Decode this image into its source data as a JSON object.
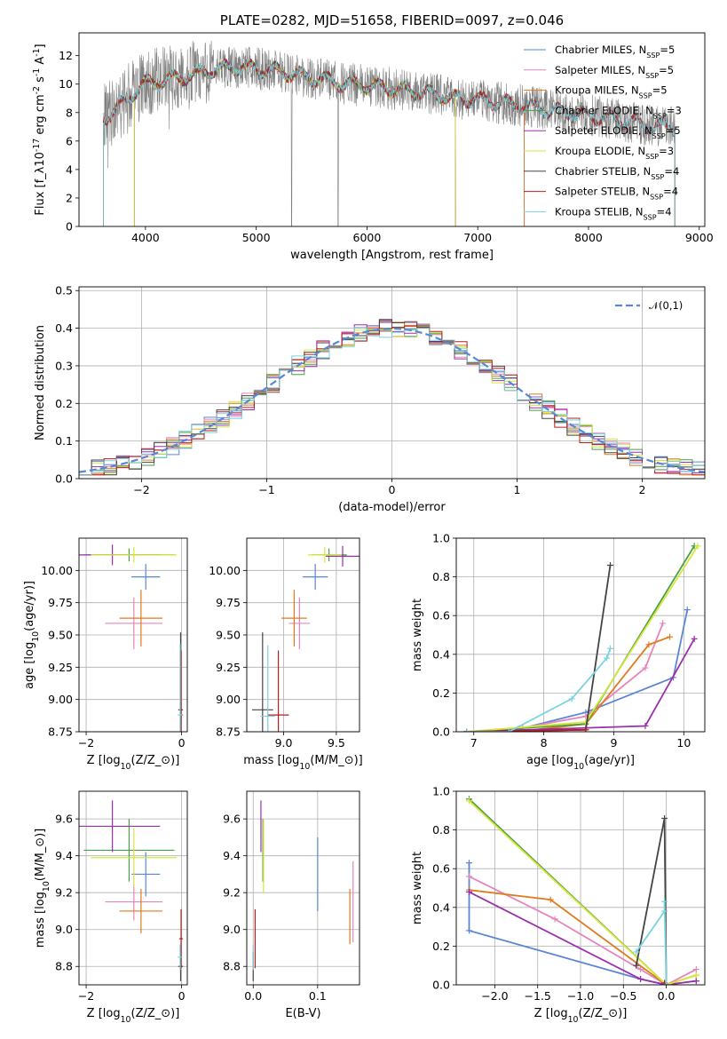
{
  "colors": {
    "Chabrier MILES": "#5b86d6",
    "Salpeter MILES": "#e684bc",
    "Kroupa MILES": "#e07a1f",
    "Chabrier ELODIE": "#4a9e4a",
    "Salpeter ELODIE": "#9b2fae",
    "Kroupa ELODIE": "#d6e63a",
    "Chabrier STELIB": "#444444",
    "Salpeter STELIB": "#b51f1f",
    "Kroupa STELIB": "#7ad3de",
    "obs": "#808080",
    "norm": "#5b86d6"
  },
  "chart_data": [
    {
      "id": "spectrum",
      "type": "line",
      "title": "PLATE=0282, MJD=51658, FIBERID=0097, z=0.046",
      "xlabel": "wavelength [Angstrom, rest frame]",
      "ylabel": "Flux [f$_\\lambda$10$^{-17}$ erg cm$^{-2}$ s$^{-1}$ A$^{-1}$]",
      "xlim": [
        3400,
        9050
      ],
      "ylim": [
        0,
        13.6
      ],
      "xticks": [
        4000,
        5000,
        6000,
        7000,
        8000,
        9000
      ],
      "yticks": [
        0,
        2,
        4,
        6,
        8,
        10,
        12
      ],
      "grid": false,
      "legend_position": "upper right",
      "legend": [
        {
          "model": "Chabrier MILES",
          "text": "Chabrier MILES, N",
          "n": "=5"
        },
        {
          "model": "Salpeter MILES",
          "text": "Salpeter MILES, N",
          "n": "=5"
        },
        {
          "model": "Kroupa MILES",
          "text": "Kroupa MILES, N",
          "n": "=5"
        },
        {
          "model": "Chabrier ELODIE",
          "text": "Chabrier ELODIE, N",
          "n": "=3"
        },
        {
          "model": "Salpeter ELODIE",
          "text": "Salpeter ELODIE, N",
          "n": "=5"
        },
        {
          "model": "Kroupa ELODIE",
          "text": "Kroupa ELODIE, N",
          "n": "=3"
        },
        {
          "model": "Chabrier STELIB",
          "text": "Chabrier STELIB, N",
          "n": "=4"
        },
        {
          "model": "Salpeter STELIB",
          "text": "Salpeter STELIB, N",
          "n": "=4"
        },
        {
          "model": "Kroupa STELIB",
          "text": "Kroupa STELIB, N",
          "n": "=4"
        }
      ],
      "legend_sub": "SSP",
      "continuum": [
        [
          3620,
          7.6
        ],
        [
          3700,
          8.0
        ],
        [
          3800,
          8.7
        ],
        [
          3900,
          9.5
        ],
        [
          4000,
          10.0
        ],
        [
          4200,
          10.3
        ],
        [
          4400,
          10.6
        ],
        [
          4600,
          11.0
        ],
        [
          4800,
          11.2
        ],
        [
          5000,
          11.1
        ],
        [
          5200,
          10.9
        ],
        [
          5400,
          10.6
        ],
        [
          5600,
          10.3
        ],
        [
          5800,
          10.0
        ],
        [
          6000,
          9.9
        ],
        [
          6200,
          9.7
        ],
        [
          6400,
          9.5
        ],
        [
          6600,
          9.3
        ],
        [
          6800,
          9.0
        ],
        [
          7000,
          8.9
        ],
        [
          7200,
          8.7
        ],
        [
          7400,
          8.5
        ],
        [
          7600,
          8.2
        ],
        [
          7800,
          8.0
        ],
        [
          8000,
          7.8
        ],
        [
          8200,
          7.6
        ],
        [
          8400,
          7.3
        ],
        [
          8600,
          7.0
        ],
        [
          8780,
          7.0
        ]
      ],
      "observed_range": [
        3620,
        8780
      ],
      "observed_noise": 1.5,
      "model_coverage": {
        "Chabrier MILES": [
          3620,
          7420
        ],
        "Salpeter MILES": [
          3620,
          7420
        ],
        "Kroupa MILES": [
          3620,
          7420
        ],
        "Chabrier ELODIE": [
          3900,
          6800
        ],
        "Salpeter ELODIE": [
          3900,
          6800
        ],
        "Kroupa ELODIE": [
          3900,
          6800
        ],
        "Chabrier STELIB": [
          3620,
          8780
        ],
        "Salpeter STELIB": [
          3620,
          8780
        ],
        "Kroupa STELIB": [
          3620,
          8780
        ]
      },
      "dropouts": [
        5320,
        5740
      ]
    },
    {
      "id": "residuals",
      "type": "histogram",
      "xlabel": "(data-model)/error",
      "ylabel": "Normed distribution",
      "xlim": [
        -2.5,
        2.5
      ],
      "ylim": [
        0,
        0.51
      ],
      "xticks": [
        -2,
        -1,
        0,
        1,
        2
      ],
      "yticks": [
        0.0,
        0.1,
        0.2,
        0.3,
        0.4,
        0.5
      ],
      "grid": true,
      "legend_position": "upper right",
      "legend": [
        {
          "text": "$\\mathcal{N}(0,1)$",
          "style": "dashed"
        }
      ],
      "bin_width": 0.1,
      "reference": "standard normal N(0,1)"
    },
    {
      "id": "age_vs_Z",
      "type": "errorbar",
      "xlabel": "Z [log$_{10}$($Z/Z_\\odot$)]",
      "ylabel": "age  [log$_{10}$($age/yr$)]",
      "xlim": [
        -2.15,
        0.12
      ],
      "ylim": [
        8.75,
        10.25
      ],
      "xticks": [
        -2,
        0
      ],
      "yticks": [
        8.75,
        9.0,
        9.25,
        9.5,
        9.75,
        10.0
      ],
      "grid": true,
      "points": [
        {
          "model": "Chabrier MILES",
          "x": -0.75,
          "y": 9.95,
          "xerr": 0.3,
          "yerr": 0.1
        },
        {
          "model": "Salpeter MILES",
          "x": -1.0,
          "y": 9.59,
          "xerr": 0.6,
          "yerr": 0.2
        },
        {
          "model": "Kroupa MILES",
          "x": -0.85,
          "y": 9.63,
          "xerr": 0.45,
          "yerr": 0.22
        },
        {
          "model": "Chabrier ELODIE",
          "x": -1.1,
          "y": 10.12,
          "xerr": 0.95,
          "yerr": 0.05
        },
        {
          "model": "Salpeter ELODIE",
          "x": -1.45,
          "y": 10.12,
          "xerr": 1.0,
          "yerr": 0.08
        },
        {
          "model": "Kroupa ELODIE",
          "x": -1.0,
          "y": 10.12,
          "xerr": 0.9,
          "yerr": 0.06
        },
        {
          "model": "Chabrier STELIB",
          "x": -0.02,
          "y": 8.92,
          "xerr": 0.05,
          "yerr": 0.6
        },
        {
          "model": "Salpeter STELIB",
          "x": -0.01,
          "y": 8.88,
          "xerr": 0.04,
          "yerr": 0.5
        },
        {
          "model": "Kroupa STELIB",
          "x": -0.03,
          "y": 8.88,
          "xerr": 0.05,
          "yerr": 0.55
        }
      ]
    },
    {
      "id": "age_vs_mass",
      "type": "errorbar",
      "xlabel": "mass [log$_{10}$($M/M_\\odot$)]",
      "xlim": [
        8.65,
        9.72
      ],
      "ylim": [
        8.75,
        10.25
      ],
      "xticks": [
        9.0,
        9.5
      ],
      "yticks": [
        8.75,
        9.0,
        9.25,
        9.5,
        9.75,
        10.0
      ],
      "grid": true,
      "points": [
        {
          "model": "Chabrier MILES",
          "x": 9.3,
          "y": 9.95,
          "xerr": 0.12,
          "yerr": 0.1
        },
        {
          "model": "Salpeter MILES",
          "x": 9.15,
          "y": 9.59,
          "xerr": 0.1,
          "yerr": 0.2
        },
        {
          "model": "Kroupa MILES",
          "x": 9.1,
          "y": 9.63,
          "xerr": 0.12,
          "yerr": 0.22
        },
        {
          "model": "Chabrier ELODIE",
          "x": 9.43,
          "y": 10.12,
          "xerr": 0.17,
          "yerr": 0.05
        },
        {
          "model": "Salpeter ELODIE",
          "x": 9.56,
          "y": 10.11,
          "xerr": 0.16,
          "yerr": 0.08
        },
        {
          "model": "Kroupa ELODIE",
          "x": 9.39,
          "y": 10.12,
          "xerr": 0.16,
          "yerr": 0.06
        },
        {
          "model": "Chabrier STELIB",
          "x": 8.8,
          "y": 8.92,
          "xerr": 0.1,
          "yerr": 0.6
        },
        {
          "model": "Salpeter STELIB",
          "x": 8.95,
          "y": 8.88,
          "xerr": 0.1,
          "yerr": 0.5
        },
        {
          "model": "Kroupa STELIB",
          "x": 8.85,
          "y": 8.87,
          "xerr": 0.07,
          "yerr": 0.55
        }
      ]
    },
    {
      "id": "weight_vs_age",
      "type": "line",
      "xlabel": "age  [log$_{10}$($age/yr$)]",
      "ylabel": "mass weight",
      "xlim": [
        6.75,
        10.3
      ],
      "ylim": [
        0,
        1.0
      ],
      "xticks": [
        7,
        8,
        9,
        10
      ],
      "yticks": [
        0.0,
        0.2,
        0.4,
        0.6,
        0.8,
        1.0
      ],
      "grid": true,
      "series": [
        {
          "model": "Chabrier MILES",
          "x": [
            6.9,
            7.5,
            8.6,
            9.85,
            10.05
          ],
          "y": [
            0.0,
            0.0,
            0.1,
            0.28,
            0.63
          ]
        },
        {
          "model": "Salpeter MILES",
          "x": [
            6.9,
            7.7,
            8.6,
            9.45,
            9.7
          ],
          "y": [
            0.0,
            0.02,
            0.08,
            0.33,
            0.56
          ]
        },
        {
          "model": "Kroupa MILES",
          "x": [
            6.9,
            7.6,
            8.6,
            9.5,
            9.8
          ],
          "y": [
            0.0,
            0.0,
            0.04,
            0.45,
            0.49
          ]
        },
        {
          "model": "Chabrier ELODIE",
          "x": [
            6.9,
            8.6,
            10.15
          ],
          "y": [
            0.0,
            0.04,
            0.96
          ]
        },
        {
          "model": "Salpeter ELODIE",
          "x": [
            6.9,
            9.45,
            10.15
          ],
          "y": [
            0.0,
            0.03,
            0.48
          ]
        },
        {
          "model": "Kroupa ELODIE",
          "x": [
            6.9,
            8.6,
            10.2
          ],
          "y": [
            0.0,
            0.05,
            0.96
          ]
        },
        {
          "model": "Chabrier STELIB",
          "x": [
            6.9,
            8.6,
            8.95
          ],
          "y": [
            0.0,
            0.01,
            0.86
          ]
        },
        {
          "model": "Salpeter STELIB",
          "x": [
            6.9,
            8.6
          ],
          "y": [
            0.0,
            0.01
          ]
        },
        {
          "model": "Kroupa STELIB",
          "x": [
            6.9,
            7.5,
            8.4,
            8.9,
            8.95
          ],
          "y": [
            0.0,
            0.0,
            0.17,
            0.38,
            0.43
          ]
        }
      ]
    },
    {
      "id": "mass_vs_Z",
      "type": "errorbar",
      "xlabel": "Z [log$_{10}$($Z/Z_\\odot$)]",
      "ylabel": "mass [log$_{10}$($M/M_\\odot$)]",
      "xlim": [
        -2.15,
        0.12
      ],
      "ylim": [
        8.7,
        9.75
      ],
      "xticks": [
        -2,
        0
      ],
      "yticks": [
        8.8,
        9.0,
        9.2,
        9.4,
        9.6
      ],
      "grid": true,
      "points": [
        {
          "model": "Chabrier MILES",
          "x": -0.75,
          "y": 9.3,
          "xerr": 0.3,
          "yerr": 0.12
        },
        {
          "model": "Salpeter MILES",
          "x": -1.0,
          "y": 9.15,
          "xerr": 0.6,
          "yerr": 0.1
        },
        {
          "model": "Kroupa MILES",
          "x": -0.85,
          "y": 9.1,
          "xerr": 0.45,
          "yerr": 0.12
        },
        {
          "model": "Chabrier ELODIE",
          "x": -1.1,
          "y": 9.43,
          "xerr": 0.95,
          "yerr": 0.17
        },
        {
          "model": "Salpeter ELODIE",
          "x": -1.45,
          "y": 9.56,
          "xerr": 1.0,
          "yerr": 0.14
        },
        {
          "model": "Kroupa ELODIE",
          "x": -1.0,
          "y": 9.39,
          "xerr": 0.9,
          "yerr": 0.16
        },
        {
          "model": "Chabrier STELIB",
          "x": -0.02,
          "y": 8.8,
          "xerr": 0.05,
          "yerr": 0.08
        },
        {
          "model": "Salpeter STELIB",
          "x": -0.01,
          "y": 8.95,
          "xerr": 0.04,
          "yerr": 0.16
        },
        {
          "model": "Kroupa STELIB",
          "x": -0.03,
          "y": 8.85,
          "xerr": 0.05,
          "yerr": 0.07
        }
      ]
    },
    {
      "id": "mass_vs_ebv",
      "type": "errorbar",
      "xlabel": "E(B-V)",
      "xlim": [
        -0.01,
        0.165
      ],
      "ylim": [
        8.7,
        9.75
      ],
      "xticks": [
        0.0,
        0.1
      ],
      "yticks": [
        8.8,
        9.0,
        9.2,
        9.4,
        9.6
      ],
      "grid": true,
      "points": [
        {
          "model": "Chabrier MILES",
          "x": 0.1,
          "y": 9.3,
          "xerr": 0,
          "yerr": 0.2
        },
        {
          "model": "Salpeter MILES",
          "x": 0.155,
          "y": 9.15,
          "xerr": 0,
          "yerr": 0.22
        },
        {
          "model": "Kroupa MILES",
          "x": 0.15,
          "y": 9.07,
          "xerr": 0,
          "yerr": 0.15
        },
        {
          "model": "Chabrier ELODIE",
          "x": 0.015,
          "y": 9.43,
          "xerr": 0,
          "yerr": 0.17
        },
        {
          "model": "Salpeter ELODIE",
          "x": 0.012,
          "y": 9.56,
          "xerr": 0,
          "yerr": 0.14
        },
        {
          "model": "Kroupa ELODIE",
          "x": 0.016,
          "y": 9.4,
          "xerr": 0,
          "yerr": 0.2
        },
        {
          "model": "Chabrier STELIB",
          "x": 0.0,
          "y": 8.8,
          "xerr": 0,
          "yerr": 0.08
        },
        {
          "model": "Salpeter STELIB",
          "x": 0.003,
          "y": 8.95,
          "xerr": 0,
          "yerr": 0.16
        },
        {
          "model": "Kroupa STELIB",
          "x": 0.0,
          "y": 8.85,
          "xerr": 0,
          "yerr": 0.07
        }
      ]
    },
    {
      "id": "weight_vs_Z",
      "type": "line",
      "xlabel": "Z [log$_{10}$($Z/Z_\\odot$)]",
      "ylabel": "mass weight",
      "xlim": [
        -2.45,
        0.45
      ],
      "ylim": [
        0,
        1.0
      ],
      "xticks": [
        -2.0,
        -1.5,
        -1.0,
        -0.5,
        0.0
      ],
      "yticks": [
        0.0,
        0.2,
        0.4,
        0.6,
        0.8,
        1.0
      ],
      "grid": true,
      "series": [
        {
          "model": "Chabrier MILES",
          "x": [
            -2.3,
            -2.3,
            -0.3,
            0.0
          ],
          "y": [
            0.63,
            0.28,
            0.03,
            0.0
          ]
        },
        {
          "model": "Salpeter MILES",
          "x": [
            -2.3,
            -1.3,
            -0.3,
            0.0,
            0.35
          ],
          "y": [
            0.56,
            0.34,
            0.08,
            0.0,
            0.08
          ]
        },
        {
          "model": "Kroupa MILES",
          "x": [
            -2.3,
            -1.35,
            0.0,
            0.35
          ],
          "y": [
            0.49,
            0.44,
            0.0,
            0.05
          ]
        },
        {
          "model": "Chabrier ELODIE",
          "x": [
            -2.3,
            0.0,
            0.35
          ],
          "y": [
            0.96,
            0.0,
            0.02
          ]
        },
        {
          "model": "Salpeter ELODIE",
          "x": [
            -2.3,
            -0.3,
            0.0,
            0.35
          ],
          "y": [
            0.48,
            0.03,
            0.0,
            0.02
          ]
        },
        {
          "model": "Kroupa ELODIE",
          "x": [
            -2.3,
            0.0,
            0.35
          ],
          "y": [
            0.95,
            0.0,
            0.05
          ]
        },
        {
          "model": "Chabrier STELIB",
          "x": [
            -0.35,
            -0.02,
            0.0
          ],
          "y": [
            0.1,
            0.86,
            0.0
          ]
        },
        {
          "model": "Salpeter STELIB",
          "x": [
            -0.02,
            0.0
          ],
          "y": [
            0.01,
            0.0
          ]
        },
        {
          "model": "Kroupa STELIB",
          "x": [
            -0.35,
            -0.02,
            -0.02,
            0.0
          ],
          "y": [
            0.17,
            0.38,
            0.43,
            0.0
          ]
        }
      ]
    }
  ]
}
